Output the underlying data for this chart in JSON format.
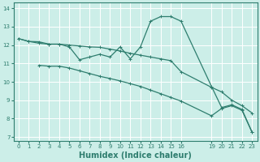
{
  "background_color": "#cceee8",
  "grid_color": "#ffffff",
  "line_color": "#2e7d6e",
  "xlabel": "Humidex (Indice chaleur)",
  "xlim": [
    -0.5,
    23.5
  ],
  "ylim": [
    6.8,
    14.3
  ],
  "yticks": [
    7,
    8,
    9,
    10,
    11,
    12,
    13,
    14
  ],
  "xticks": [
    0,
    1,
    2,
    3,
    4,
    5,
    6,
    7,
    8,
    9,
    10,
    11,
    12,
    13,
    14,
    15,
    16,
    19,
    20,
    21,
    22,
    23
  ],
  "line1_x": [
    0,
    1,
    2,
    3,
    4,
    5,
    6,
    7,
    8,
    9,
    10,
    11,
    12,
    13,
    14,
    15,
    16,
    19,
    20,
    21,
    22,
    23
  ],
  "line1_y": [
    12.35,
    12.2,
    12.18,
    12.05,
    12.05,
    12.0,
    11.95,
    11.9,
    11.88,
    11.78,
    11.68,
    11.55,
    11.45,
    11.35,
    11.25,
    11.15,
    10.55,
    9.7,
    9.45,
    9.0,
    8.7,
    8.3
  ],
  "line2_x": [
    0,
    1,
    2,
    3,
    4,
    5,
    6,
    7,
    8,
    9,
    10,
    11,
    12,
    13,
    14,
    15,
    16,
    19,
    20,
    21,
    22,
    23
  ],
  "line2_y": [
    12.35,
    12.2,
    12.1,
    12.05,
    12.05,
    11.9,
    11.2,
    11.35,
    11.5,
    11.35,
    11.9,
    11.25,
    11.9,
    13.3,
    13.55,
    13.55,
    13.3,
    9.75,
    8.6,
    8.75,
    8.5,
    7.25
  ],
  "line3_x": [
    2,
    3,
    4,
    5,
    6,
    7,
    8,
    9,
    10,
    11,
    12,
    13,
    14,
    15,
    16,
    19,
    20,
    21,
    22,
    23
  ],
  "line3_y": [
    10.9,
    10.85,
    10.85,
    10.75,
    10.6,
    10.45,
    10.3,
    10.18,
    10.05,
    9.9,
    9.75,
    9.55,
    9.35,
    9.15,
    8.95,
    8.15,
    8.55,
    8.7,
    8.45,
    7.25
  ],
  "xlabel_fontsize": 7,
  "tick_fontsize": 5,
  "linewidth": 0.9,
  "markersize": 3
}
